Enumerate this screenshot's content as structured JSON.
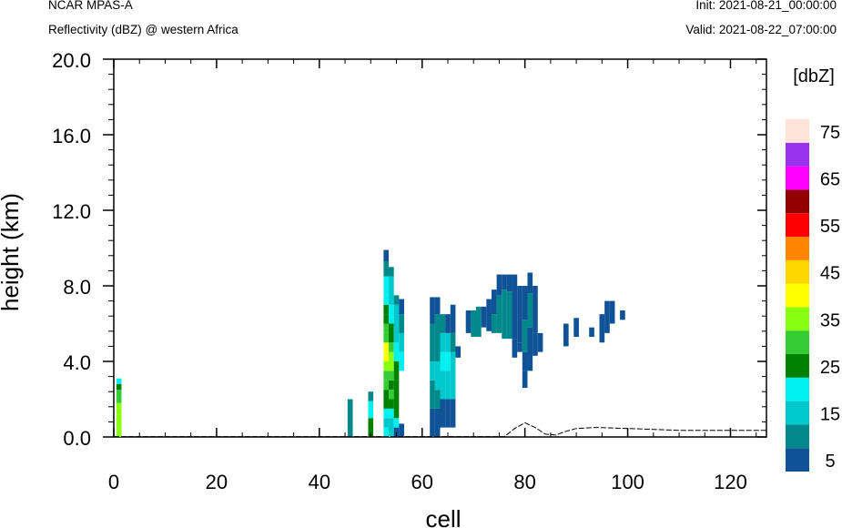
{
  "header": {
    "model": "NCAR MPAS-A",
    "title": "Reflectivity (dBZ) @ western Africa",
    "init": "Init: 2021-08-21_00:00:00",
    "valid": "Valid: 2021-08-22_07:00:00"
  },
  "chart_data": {
    "type": "heatmap",
    "xlabel": "cell",
    "ylabel": "height (km)",
    "xlim": [
      0,
      127
    ],
    "ylim": [
      0,
      20
    ],
    "x_ticks": [
      0,
      20,
      40,
      60,
      80,
      100,
      120
    ],
    "x_tick_labels": [
      "0",
      "20",
      "40",
      "60",
      "80",
      "100",
      "120"
    ],
    "y_ticks": [
      0,
      4,
      8,
      12,
      16,
      20
    ],
    "y_tick_labels": [
      "0.0",
      "4.0",
      "8.0",
      "12.0",
      "16.0",
      "20.0"
    ],
    "colorbar": {
      "unit": "[dbZ]",
      "levels": [
        5,
        10,
        15,
        20,
        25,
        30,
        35,
        40,
        45,
        50,
        55,
        60,
        65,
        70,
        75
      ],
      "labels": [
        "5",
        "15",
        "25",
        "35",
        "45",
        "55",
        "65",
        "75"
      ],
      "colors": [
        "#0f5396",
        "#00888a",
        "#00c8cc",
        "#00f0f0",
        "#008000",
        "#33cc33",
        "#88ff11",
        "#ffff00",
        "#ffd700",
        "#ff8400",
        "#ff0000",
        "#930000",
        "#ff00ff",
        "#9933ee",
        "#ffe2d8"
      ]
    },
    "terrain": [
      [
        0,
        0.02
      ],
      [
        10,
        0.02
      ],
      [
        20,
        0.02
      ],
      [
        30,
        0.02
      ],
      [
        40,
        0.02
      ],
      [
        50,
        0.02
      ],
      [
        60,
        0.02
      ],
      [
        70,
        0.02
      ],
      [
        76,
        0.02
      ],
      [
        78,
        0.45
      ],
      [
        80,
        0.75
      ],
      [
        82,
        0.5
      ],
      [
        84,
        0.15
      ],
      [
        86,
        0.1
      ],
      [
        88,
        0.3
      ],
      [
        90,
        0.45
      ],
      [
        94,
        0.5
      ],
      [
        100,
        0.45
      ],
      [
        105,
        0.4
      ],
      [
        110,
        0.35
      ],
      [
        115,
        0.35
      ],
      [
        120,
        0.35
      ],
      [
        127,
        0.35
      ]
    ],
    "cells": [
      [
        1,
        0,
        0.3,
        35
      ],
      [
        1,
        0.3,
        0.6,
        35
      ],
      [
        1,
        0.6,
        0.9,
        35
      ],
      [
        1,
        0.9,
        1.2,
        35
      ],
      [
        1,
        1.2,
        1.5,
        35
      ],
      [
        1,
        1.5,
        1.8,
        35
      ],
      [
        1,
        1.8,
        2.1,
        30
      ],
      [
        1,
        2.1,
        2.5,
        30
      ],
      [
        1,
        2.5,
        2.8,
        25
      ],
      [
        1,
        2.8,
        3.1,
        20
      ],
      [
        46,
        0,
        2.0,
        10
      ],
      [
        50,
        0,
        1.0,
        25
      ],
      [
        50,
        1.0,
        1.9,
        20
      ],
      [
        50,
        1.9,
        2.4,
        10
      ],
      [
        53,
        0,
        0.5,
        20
      ],
      [
        53,
        0.5,
        1.0,
        15
      ],
      [
        53,
        1.0,
        1.5,
        20
      ],
      [
        53,
        1.5,
        2.0,
        25
      ],
      [
        53,
        2.0,
        2.5,
        25
      ],
      [
        53,
        2.5,
        3.0,
        30
      ],
      [
        53,
        3.0,
        3.5,
        30
      ],
      [
        53,
        3.5,
        4.0,
        35
      ],
      [
        53,
        4.0,
        4.5,
        40
      ],
      [
        53,
        4.5,
        5.0,
        40
      ],
      [
        53,
        5.0,
        5.5,
        30
      ],
      [
        53,
        5.5,
        6.0,
        30
      ],
      [
        53,
        6.0,
        6.5,
        25
      ],
      [
        53,
        6.5,
        7.0,
        25
      ],
      [
        53,
        7.0,
        7.5,
        20
      ],
      [
        53,
        7.5,
        8.5,
        20
      ],
      [
        53,
        8.5,
        9.3,
        10
      ],
      [
        53,
        9.3,
        9.9,
        5
      ],
      [
        54,
        0,
        1.0,
        15
      ],
      [
        54,
        1.0,
        1.5,
        20
      ],
      [
        54,
        1.5,
        2.0,
        25
      ],
      [
        54,
        2.0,
        2.5,
        30
      ],
      [
        54,
        2.5,
        3.0,
        25
      ],
      [
        54,
        3.0,
        3.5,
        30
      ],
      [
        54,
        3.5,
        4.0,
        35
      ],
      [
        54,
        4.0,
        4.5,
        35
      ],
      [
        54,
        4.5,
        5.0,
        30
      ],
      [
        54,
        5.0,
        6.0,
        25
      ],
      [
        54,
        6.0,
        7.0,
        20
      ],
      [
        54,
        7.0,
        8.5,
        15
      ],
      [
        54,
        8.5,
        9.0,
        10
      ],
      [
        55,
        0,
        0.5,
        5
      ],
      [
        55,
        0.5,
        1.0,
        20
      ],
      [
        55,
        1.0,
        2.0,
        25
      ],
      [
        55,
        2.0,
        3.0,
        25
      ],
      [
        55,
        3.0,
        4.0,
        25
      ],
      [
        55,
        4.0,
        5.0,
        20
      ],
      [
        55,
        5.0,
        6.0,
        15
      ],
      [
        55,
        6.0,
        7.0,
        15
      ],
      [
        55,
        7.0,
        7.5,
        10
      ],
      [
        56,
        0,
        0.7,
        5
      ],
      [
        56,
        3.5,
        4.5,
        20
      ],
      [
        56,
        4.5,
        5.5,
        15
      ],
      [
        56,
        5.5,
        6.5,
        10
      ],
      [
        56,
        6.5,
        7.3,
        5
      ],
      [
        62,
        0,
        1.5,
        5
      ],
      [
        62,
        1.5,
        3.0,
        10
      ],
      [
        62,
        3.0,
        4.0,
        15
      ],
      [
        62,
        4.0,
        6.0,
        10
      ],
      [
        62,
        6.0,
        7.4,
        5
      ],
      [
        63,
        0,
        1.5,
        5
      ],
      [
        63,
        1.5,
        2.5,
        10
      ],
      [
        63,
        2.5,
        4.0,
        15
      ],
      [
        63,
        4.0,
        6.5,
        10
      ],
      [
        63,
        6.5,
        7.4,
        5
      ],
      [
        64,
        0.5,
        2.0,
        5
      ],
      [
        64,
        2.0,
        3.5,
        15
      ],
      [
        64,
        3.5,
        4.5,
        20
      ],
      [
        64,
        4.5,
        5.5,
        15
      ],
      [
        64,
        5.5,
        6.5,
        10
      ],
      [
        65,
        0.5,
        2.0,
        5
      ],
      [
        65,
        2.0,
        3.5,
        15
      ],
      [
        65,
        3.5,
        4.5,
        20
      ],
      [
        65,
        4.5,
        5.5,
        15
      ],
      [
        65,
        5.5,
        6.5,
        5
      ],
      [
        66,
        0.5,
        2.0,
        5
      ],
      [
        66,
        2.0,
        4.5,
        15
      ],
      [
        66,
        4.5,
        5.5,
        10
      ],
      [
        66,
        5.5,
        7.0,
        5
      ],
      [
        67,
        4.2,
        4.8,
        5
      ],
      [
        69,
        5.5,
        6.7,
        5
      ],
      [
        70,
        5.3,
        6.7,
        10
      ],
      [
        71,
        5.3,
        6.9,
        10
      ],
      [
        72,
        5.8,
        6.9,
        5
      ],
      [
        73,
        5.6,
        7.3,
        5
      ],
      [
        74,
        5.5,
        6.5,
        10
      ],
      [
        74,
        6.5,
        7.8,
        5
      ],
      [
        75,
        5.5,
        7.5,
        10
      ],
      [
        75,
        7.5,
        8.6,
        5
      ],
      [
        76,
        5.2,
        7.8,
        10
      ],
      [
        76,
        7.8,
        8.6,
        5
      ],
      [
        77,
        5.2,
        7.7,
        10
      ],
      [
        77,
        7.7,
        8.6,
        5
      ],
      [
        78,
        4.2,
        5.2,
        5
      ],
      [
        78,
        5.2,
        8.6,
        5
      ],
      [
        79,
        4.5,
        5.0,
        5
      ],
      [
        79,
        5.0,
        8.0,
        5
      ],
      [
        80,
        3.5,
        4.5,
        5
      ],
      [
        80,
        4.5,
        6.2,
        10
      ],
      [
        80,
        6.2,
        8.0,
        5
      ],
      [
        80,
        2.6,
        3.5,
        5
      ],
      [
        81,
        3.5,
        5.8,
        5
      ],
      [
        81,
        5.8,
        7.6,
        10
      ],
      [
        81,
        7.6,
        8.7,
        5
      ],
      [
        82,
        4.3,
        5.5,
        5
      ],
      [
        82,
        5.5,
        8.0,
        5
      ],
      [
        83,
        4.5,
        5.5,
        5
      ],
      [
        88,
        4.8,
        6.0,
        5
      ],
      [
        90,
        5.3,
        6.3,
        5
      ],
      [
        93,
        5.3,
        5.8,
        5
      ],
      [
        95,
        5.0,
        6.5,
        5
      ],
      [
        96,
        5.5,
        7.2,
        5
      ],
      [
        97,
        6.0,
        7.2,
        5
      ],
      [
        99,
        6.2,
        6.7,
        5
      ]
    ]
  }
}
